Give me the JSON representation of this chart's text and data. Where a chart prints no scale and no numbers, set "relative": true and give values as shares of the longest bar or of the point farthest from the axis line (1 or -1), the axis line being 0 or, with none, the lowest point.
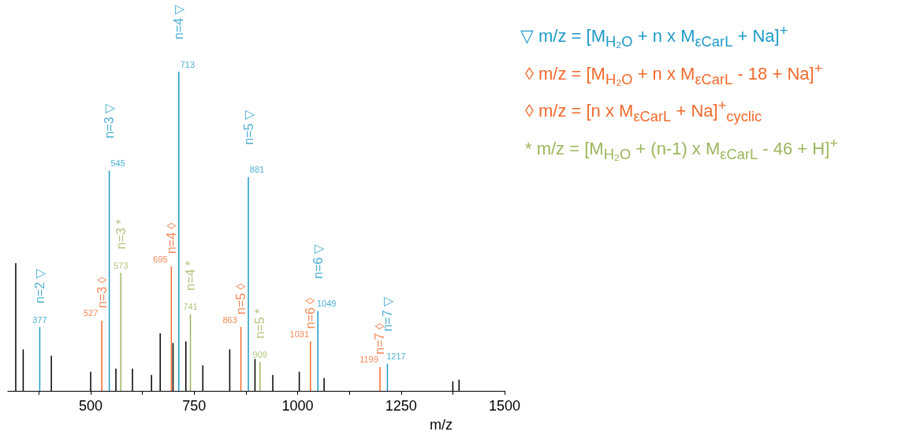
{
  "chart_data": {
    "type": "bar",
    "relative": true,
    "xlabel": "m/z",
    "xlim": [
      300,
      1500
    ],
    "xticks": [
      {
        "value": 375,
        "label": null
      },
      500,
      {
        "value": 625,
        "label": null
      },
      750,
      {
        "value": 875,
        "label": null
      },
      1000,
      {
        "value": 1125,
        "label": null
      },
      1250,
      {
        "value": 1375,
        "label": null
      },
      1500
    ],
    "grid": false,
    "legend": "right",
    "series": [
      {
        "color": "#000000",
        "x": [
          319,
          337,
          405,
          500,
          561,
          601,
          647,
          668,
          699,
          730,
          771,
          836,
          897,
          940,
          1004,
          1064,
          1375,
          1390
        ],
        "values": [
          0.4,
          0.13,
          0.11,
          0.06,
          0.07,
          0.07,
          0.05,
          0.18,
          0.15,
          0.155,
          0.08,
          0.13,
          0.1,
          0.05,
          0.06,
          0.04,
          0.03,
          0.035
        ]
      },
      {
        "name": "▽ m/z = [M$_{H₂O}$ + n x M$_{εCarL}$ + Na]$^{+}$",
        "color": "#1e9bc8",
        "x": [
          377,
          545,
          713,
          881,
          1049,
          1217
        ],
        "values": [
          0.2,
          0.69,
          1,
          0.67,
          0.25,
          0.085
        ]
      },
      {
        "name": "◊ m/z = [M$_{H₂O}$ + n x M$_{εCarL}$ - 18 + Na]$^{+}$",
        "color": "#f26a2c",
        "x": [
          527,
          695,
          863,
          1031,
          1199
        ],
        "values": [
          0.22,
          0.39,
          0.2,
          0.155,
          0.075
        ]
      },
      {
        "name": "◊ m/z = [n x M$_{εCarL}$ + Na]$^{+}$$_{cyclic}$",
        "color": "#f26a2c"
      },
      {
        "name": "* m/z = [M$_{H₂O}$ + (n-1) x M$_{εCarL}$ - 46 + H]$^{+}$",
        "color": "#9cb65c",
        "x": [
          573,
          741,
          909
        ],
        "values": [
          0.37,
          0.24,
          0.09
        ]
      }
    ],
    "annotations": [
      {
        "text": "377",
        "x": 377,
        "y": 0.2
      },
      {
        "text": "n=2 ▽",
        "x": 377,
        "y": 0.2
      },
      {
        "text": "545",
        "x": 545,
        "y": 0.69
      },
      {
        "text": "n=3 ▽",
        "x": 545,
        "y": 0.69
      },
      {
        "text": "713",
        "x": 713,
        "y": 1
      },
      {
        "text": "n=4 ▽",
        "x": 713,
        "y": 1
      },
      {
        "text": "881",
        "x": 881,
        "y": 0.67
      },
      {
        "text": "n=5 ▽",
        "x": 881,
        "y": 0.67
      },
      {
        "text": "1049",
        "x": 1049,
        "y": 0.25
      },
      {
        "text": "n=6 ▽",
        "x": 1049,
        "y": 0.25
      },
      {
        "text": "1217",
        "x": 1217,
        "y": 0.085
      },
      {
        "text": "n=7 ▽",
        "x": 1217,
        "y": 0.085
      },
      {
        "text": "527",
        "x": 527,
        "y": 0.22
      },
      {
        "text": "n=3 ◊",
        "x": 527,
        "y": 0.22
      },
      {
        "text": "695",
        "x": 695,
        "y": 0.39
      },
      {
        "text": "n=4 ◊",
        "x": 695,
        "y": 0.39
      },
      {
        "text": "863",
        "x": 863,
        "y": 0.2
      },
      {
        "text": "n=5 ◊",
        "x": 863,
        "y": 0.2
      },
      {
        "text": "1031",
        "x": 1031,
        "y": 0.155
      },
      {
        "text": "n=6 ◊",
        "x": 1031,
        "y": 0.155
      },
      {
        "text": "1199",
        "x": 1199,
        "y": 0.075
      },
      {
        "text": "n=7 ◊",
        "x": 1199,
        "y": 0.075
      },
      {
        "text": "573",
        "x": 573,
        "y": 0.37
      },
      {
        "text": "n=3 *",
        "x": 573,
        "y": 0.37
      },
      {
        "text": "741",
        "x": 741,
        "y": 0.24
      },
      {
        "text": "n=4 *",
        "x": 741,
        "y": 0.24
      },
      {
        "text": "909",
        "x": 909,
        "y": 0.09
      },
      {
        "text": "n=5 *",
        "x": 909,
        "y": 0.09
      }
    ]
  }
}
